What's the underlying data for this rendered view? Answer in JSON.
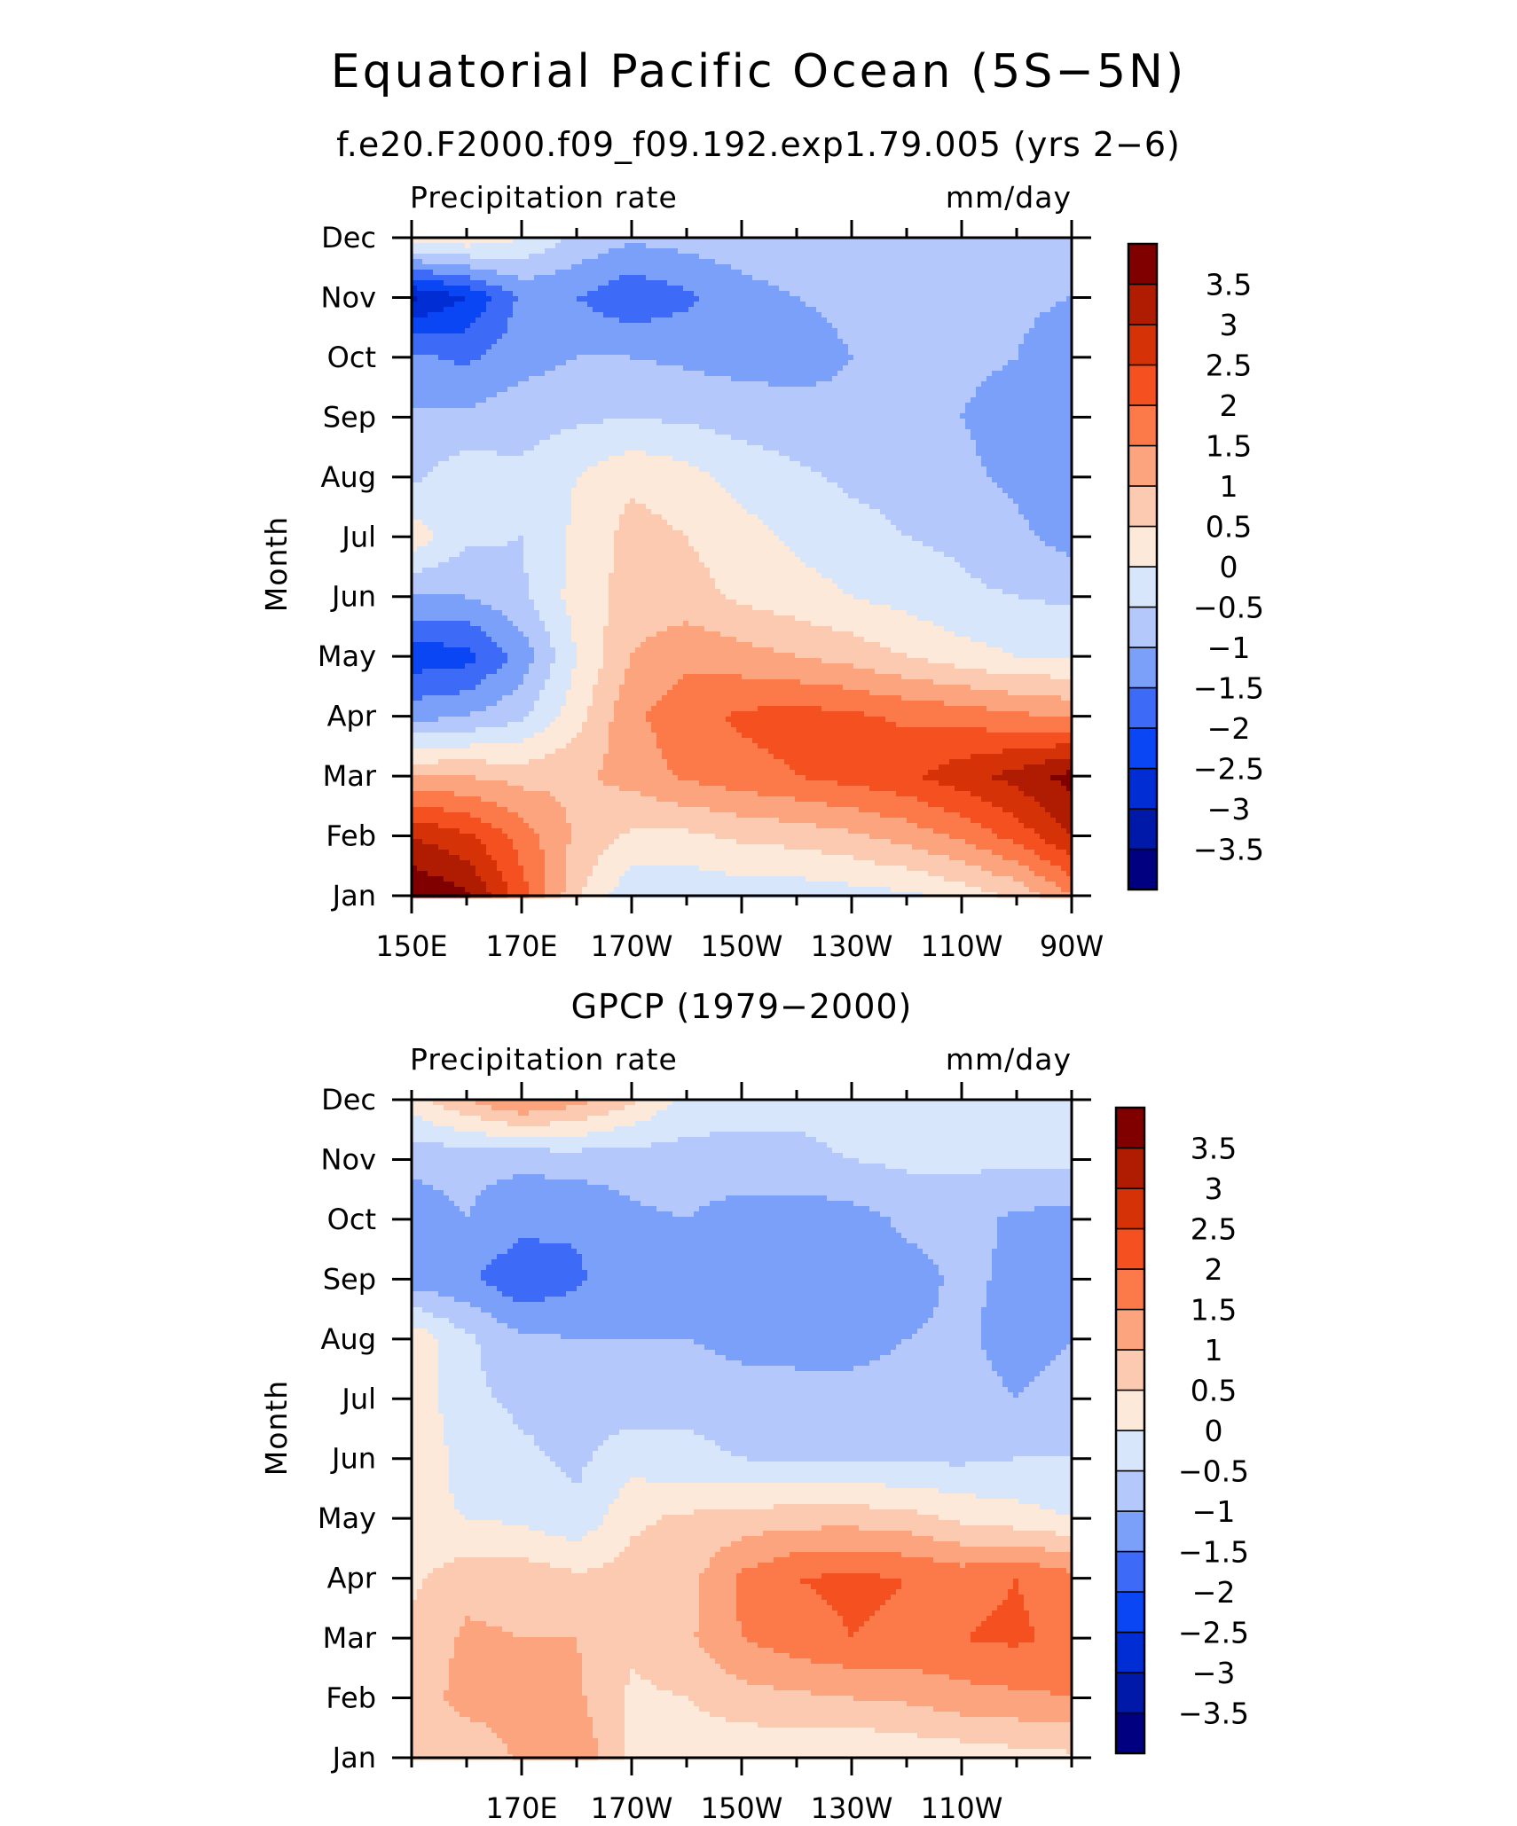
{
  "figure": {
    "title": "Equatorial Pacific Ocean (5S−5N)"
  },
  "colorbar": {
    "colors": [
      "#000080",
      "#0019a8",
      "#002ed4",
      "#0a46f4",
      "#3d6bf8",
      "#7ba0fa",
      "#b4c8fb",
      "#d8e6fb",
      "#fde9d9",
      "#fccab0",
      "#fca47e",
      "#fc7a4a",
      "#f55020",
      "#d63208",
      "#b01c02",
      "#800000"
    ],
    "labels": [
      "−3.5",
      "−3",
      "−2.5",
      "−2",
      "−1.5",
      "−1",
      "−0.5",
      "0",
      "0.5",
      "1",
      "1.5",
      "2",
      "2.5",
      "3",
      "3.5"
    ],
    "levels": [
      -3.5,
      -3,
      -2.5,
      -2,
      -1.5,
      -1,
      -0.5,
      0,
      0.5,
      1,
      1.5,
      2,
      2.5,
      3,
      3.5
    ]
  },
  "chart_data": [
    {
      "type": "heatmap",
      "title": "f.e20.F2000.f09_f09.192.exp1.79.005 (yrs 2−6)",
      "left_label": "Precipitation rate",
      "right_label": "mm/day",
      "ylabel": "Month",
      "x_range": [
        150,
        270
      ],
      "x_ticks": [
        150,
        170,
        190,
        210,
        230,
        250,
        270
      ],
      "x_tick_labels": [
        "150E",
        "170E",
        "170W",
        "150W",
        "130W",
        "110W",
        "90W"
      ],
      "y_tick_labels": [
        "Jan",
        "Feb",
        "Mar",
        "Apr",
        "May",
        "Jun",
        "Jul",
        "Aug",
        "Sep",
        "Oct",
        "Nov",
        "Dec"
      ],
      "units": "mm/day",
      "x": [
        150,
        160,
        170,
        180,
        190,
        200,
        210,
        220,
        230,
        240,
        250,
        260,
        270
      ],
      "months": [
        "Jan",
        "Feb",
        "Mar",
        "Apr",
        "May",
        "Jun",
        "Jul",
        "Aug",
        "Sep",
        "Oct",
        "Nov",
        "Dec"
      ],
      "values": [
        [
          4.0,
          3.6,
          2.2,
          0.6,
          -0.4,
          -0.4,
          -0.3,
          -0.3,
          -0.2,
          -0.1,
          0.2,
          0.6,
          1.5
        ],
        [
          3.0,
          2.6,
          1.8,
          0.9,
          0.4,
          0.4,
          0.6,
          0.7,
          0.9,
          1.2,
          1.6,
          2.2,
          3.0
        ],
        [
          1.0,
          1.0,
          0.8,
          0.9,
          1.2,
          1.6,
          1.8,
          2.0,
          2.2,
          2.4,
          2.8,
          3.2,
          3.7
        ],
        [
          -1.2,
          -1.0,
          -0.6,
          0.3,
          1.4,
          1.8,
          2.1,
          2.2,
          2.1,
          1.9,
          1.8,
          1.6,
          1.4
        ],
        [
          -2.3,
          -2.2,
          -1.3,
          0.0,
          1.0,
          1.4,
          1.2,
          1.0,
          0.8,
          0.5,
          0.2,
          0.0,
          0.0
        ],
        [
          -1.0,
          -1.0,
          -0.6,
          0.2,
          0.7,
          0.7,
          0.4,
          0.2,
          0.0,
          -0.2,
          -0.4,
          -0.5,
          -0.6
        ],
        [
          0.3,
          -0.4,
          -0.5,
          0.1,
          0.7,
          0.5,
          0.2,
          -0.1,
          -0.3,
          -0.5,
          -0.6,
          -0.9,
          -1.2
        ],
        [
          -0.6,
          -0.2,
          -0.4,
          0.0,
          0.4,
          0.2,
          -0.2,
          -0.4,
          -0.6,
          -0.7,
          -0.9,
          -1.1,
          -1.3
        ],
        [
          -0.9,
          -0.9,
          -0.7,
          -0.6,
          -0.5,
          -0.6,
          -0.7,
          -0.8,
          -0.9,
          -0.9,
          -1.0,
          -1.2,
          -1.3
        ],
        [
          -1.4,
          -1.6,
          -1.2,
          -1.0,
          -1.0,
          -1.1,
          -1.2,
          -1.2,
          -1.0,
          -0.9,
          -0.9,
          -1.0,
          -1.3
        ],
        [
          -3.1,
          -2.5,
          -1.4,
          -1.5,
          -1.9,
          -1.6,
          -1.2,
          -1.0,
          -0.9,
          -0.9,
          -0.8,
          -0.9,
          -1.0
        ],
        [
          0.3,
          0.4,
          0.0,
          -0.6,
          -0.9,
          -0.8,
          -0.7,
          -0.6,
          -0.5,
          -0.5,
          -0.5,
          -0.6,
          -0.7
        ]
      ]
    },
    {
      "type": "heatmap",
      "title": "GPCP (1979−2000)",
      "left_label": "Precipitation rate",
      "right_label": "mm/day",
      "ylabel": "Month",
      "x_range": [
        150,
        270
      ],
      "x_ticks": [
        170,
        190,
        210,
        230,
        250
      ],
      "x_tick_labels": [
        "170E",
        "170W",
        "150W",
        "130W",
        "110W"
      ],
      "y_tick_labels": [
        "Jan",
        "Feb",
        "Mar",
        "Apr",
        "May",
        "Jun",
        "Jul",
        "Aug",
        "Sep",
        "Oct",
        "Nov",
        "Dec"
      ],
      "units": "mm/day",
      "x": [
        150,
        160,
        170,
        180,
        190,
        200,
        210,
        220,
        230,
        240,
        250,
        260,
        270
      ],
      "months": [
        "Jan",
        "Feb",
        "Mar",
        "Apr",
        "May",
        "Jun",
        "Jul",
        "Aug",
        "Sep",
        "Oct",
        "Nov",
        "Dec"
      ],
      "values": [
        [
          0.6,
          0.6,
          1.1,
          1.4,
          0.4,
          0.2,
          0.1,
          0.1,
          0.0,
          0.1,
          0.2,
          0.3,
          0.4
        ],
        [
          0.7,
          1.2,
          1.2,
          1.1,
          0.4,
          0.5,
          0.8,
          0.9,
          1.0,
          1.1,
          1.3,
          1.4,
          1.5
        ],
        [
          0.6,
          1.1,
          1.0,
          1.0,
          0.6,
          0.9,
          1.5,
          1.8,
          2.0,
          1.9,
          2.0,
          2.1,
          1.8
        ],
        [
          0.4,
          0.8,
          0.8,
          0.6,
          0.7,
          0.8,
          1.6,
          2.0,
          2.1,
          2.0,
          1.8,
          2.0,
          1.7
        ],
        [
          0.1,
          0.0,
          -0.1,
          -0.4,
          0.4,
          0.6,
          0.7,
          0.8,
          0.8,
          0.7,
          0.4,
          0.2,
          0.0
        ],
        [
          0.4,
          -0.2,
          -0.4,
          -0.6,
          -0.2,
          -0.4,
          -0.5,
          -0.6,
          -0.6,
          -0.6,
          -0.6,
          -0.5,
          -0.5
        ],
        [
          0.4,
          -0.4,
          -0.6,
          -0.7,
          -0.8,
          -0.6,
          -0.7,
          -0.8,
          -0.9,
          -0.9,
          -0.8,
          -1.0,
          -0.8
        ],
        [
          0.4,
          -0.4,
          -0.9,
          -1.0,
          -1.0,
          -1.0,
          -1.2,
          -1.2,
          -1.1,
          -1.0,
          -0.9,
          -1.2,
          -1.0
        ],
        [
          -1.3,
          -1.4,
          -1.9,
          -1.6,
          -1.1,
          -1.2,
          -1.3,
          -1.3,
          -1.3,
          -1.2,
          -0.9,
          -1.1,
          -1.2
        ],
        [
          -1.2,
          -1.0,
          -1.3,
          -1.4,
          -1.1,
          -1.0,
          -1.3,
          -1.3,
          -1.2,
          -0.9,
          -0.8,
          -1.1,
          -1.2
        ],
        [
          -0.9,
          -0.9,
          -0.9,
          -0.8,
          -0.8,
          -0.7,
          -0.6,
          -0.6,
          -0.5,
          -0.4,
          -0.4,
          -0.4,
          -0.4
        ],
        [
          0.3,
          1.0,
          1.6,
          1.2,
          0.6,
          -0.2,
          -0.4,
          -0.4,
          -0.3,
          -0.3,
          -0.4,
          -0.4,
          -0.5
        ]
      ]
    }
  ]
}
